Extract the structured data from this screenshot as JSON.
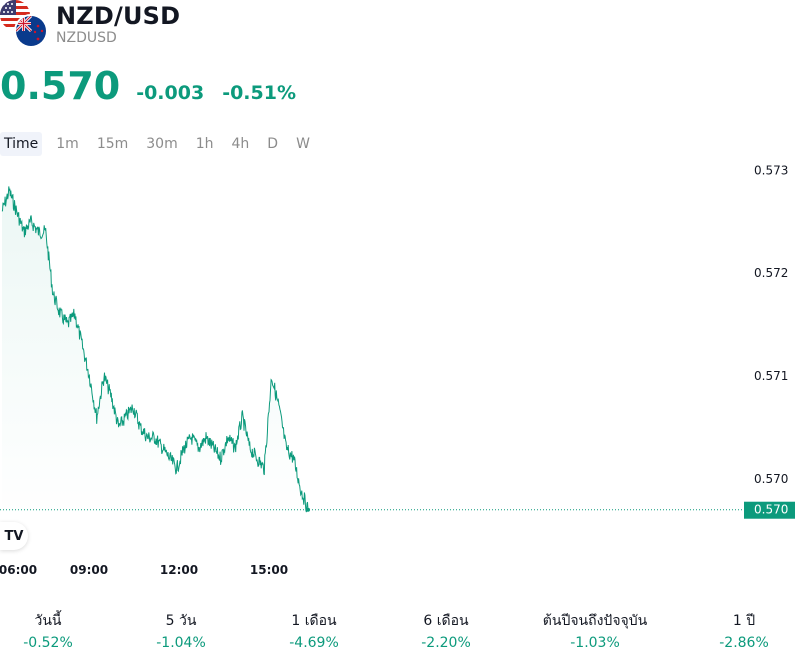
{
  "header": {
    "title": "NZD/USD",
    "subtitle": "NZDUSD",
    "price": "0.570",
    "change": "-0.003",
    "change_pct": "-0.51%"
  },
  "timeframes": [
    "Time",
    "1m",
    "15m",
    "30m",
    "1h",
    "4h",
    "D",
    "W"
  ],
  "active_timeframe": "Time",
  "colors": {
    "accent": "#0c9a7c",
    "text": "#131722",
    "muted": "#8c8c8c"
  },
  "icons": {
    "us_flag": "us-flag-icon",
    "nz_flag": "nz-flag-icon",
    "logo": "tradingview-logo"
  },
  "logo_text": "TV",
  "chart_data": {
    "type": "area",
    "x_ticks": [
      "06:00",
      "09:00",
      "12:00",
      "15:00"
    ],
    "y_ticks": [
      "0.573",
      "0.572",
      "0.571",
      "0.570"
    ],
    "ylim": [
      0.5696,
      0.5731
    ],
    "last_price_label": "0.570",
    "last_price": 0.5697,
    "series": [
      {
        "x": [
          "06:00",
          "06:15",
          "06:30",
          "06:45",
          "07:00",
          "07:15",
          "07:30",
          "07:45",
          "08:00",
          "08:15",
          "08:30",
          "08:45",
          "09:00",
          "09:15",
          "09:30",
          "09:45",
          "10:00",
          "10:15",
          "10:30",
          "10:45",
          "11:00",
          "11:15",
          "11:30",
          "11:45",
          "12:00",
          "12:15",
          "12:30",
          "12:45",
          "13:00",
          "13:15",
          "13:30",
          "13:45",
          "14:00",
          "14:15",
          "14:30",
          "14:45",
          "15:00",
          "15:15",
          "15:30",
          "15:45",
          "16:00",
          "16:15",
          "16:30"
        ],
        "values": [
          0.5726,
          0.5728,
          0.5726,
          0.5724,
          0.5725,
          0.5724,
          0.5724,
          0.5718,
          0.5716,
          0.5715,
          0.5716,
          0.5713,
          0.571,
          0.5706,
          0.571,
          0.5708,
          0.5705,
          0.5706,
          0.5707,
          0.5705,
          0.5704,
          0.5704,
          0.5703,
          0.5702,
          0.5701,
          0.5703,
          0.5704,
          0.5703,
          0.5704,
          0.5703,
          0.5702,
          0.5704,
          0.5703,
          0.5706,
          0.5703,
          0.5702,
          0.5701,
          0.571,
          0.5707,
          0.5703,
          0.5702,
          0.5699,
          0.5697
        ]
      }
    ],
    "grid": false
  },
  "performance": [
    {
      "label": "วันนี้",
      "value": "-0.52%"
    },
    {
      "label": "5 วัน",
      "value": "-1.04%"
    },
    {
      "label": "1 เดือน",
      "value": "-4.69%"
    },
    {
      "label": "6 เดือน",
      "value": "-2.20%"
    },
    {
      "label": "ต้นปีจนถึงปัจจุบัน",
      "value": "-1.03%"
    },
    {
      "label": "1 ปี",
      "value": "-2.86%"
    }
  ]
}
